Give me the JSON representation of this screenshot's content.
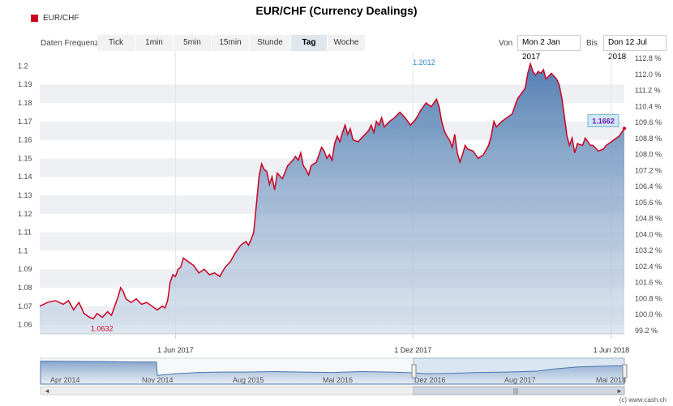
{
  "title": "EUR/CHF (Currency Dealings)",
  "legend": {
    "label": "EUR/CHF",
    "color": "#cc0022"
  },
  "controls": {
    "frequency_label": "Daten Frequenz",
    "buttons": [
      "Tick",
      "1min",
      "5min",
      "15min",
      "Stunde",
      "Tag",
      "Woche"
    ],
    "active": "Tag",
    "from_label": "Von",
    "from_value": "Mon 2 Jan 2017",
    "to_label": "Bis",
    "to_value": "Don 12 Jul 2018"
  },
  "footer": "(c) www.cash.ch",
  "chart_data": {
    "type": "area",
    "title": "EUR/CHF (Currency Dealings)",
    "series": [
      {
        "name": "EUR/CHF",
        "color": "#cc0022"
      }
    ],
    "x_ticks": [
      "1 Jun 2017",
      "1 Dez 2017",
      "1 Jun 2018"
    ],
    "y_left_ticks": [
      "1.06",
      "1.07",
      "1.08",
      "1.09",
      "1.1",
      "1.11",
      "1.12",
      "1.13",
      "1.14",
      "1.15",
      "1.16",
      "1.17",
      "1.18",
      "1.19",
      "1.2"
    ],
    "y_right_ticks": [
      "99.2 %",
      "100.0 %",
      "100.8 %",
      "101.6 %",
      "102.4 %",
      "103.2 %",
      "104.0 %",
      "104.8 %",
      "105.6 %",
      "106.4 %",
      "107.2 %",
      "108.0 %",
      "108.8 %",
      "109.6 %",
      "110.4 %",
      "111.2 %",
      "112.0 %",
      "112.8 %"
    ],
    "ylim": [
      1.055,
      1.205
    ],
    "annotations": {
      "max_label": "1.2012",
      "min_label": "1.0632",
      "last_label": "1.1662"
    },
    "points": [
      [
        0,
        1.07
      ],
      [
        6,
        1.072
      ],
      [
        12,
        1.073
      ],
      [
        18,
        1.071
      ],
      [
        22,
        1.073
      ],
      [
        26,
        1.068
      ],
      [
        30,
        1.072
      ],
      [
        34,
        1.066
      ],
      [
        38,
        1.064
      ],
      [
        41,
        1.0632
      ],
      [
        44,
        1.066
      ],
      [
        48,
        1.064
      ],
      [
        52,
        1.067
      ],
      [
        55,
        1.065
      ],
      [
        58,
        1.071
      ],
      [
        60,
        1.075
      ],
      [
        62,
        1.08
      ],
      [
        64,
        1.078
      ],
      [
        66,
        1.074
      ],
      [
        70,
        1.072
      ],
      [
        74,
        1.074
      ],
      [
        78,
        1.071
      ],
      [
        82,
        1.072
      ],
      [
        86,
        1.07
      ],
      [
        90,
        1.068
      ],
      [
        94,
        1.07
      ],
      [
        96,
        1.069
      ],
      [
        98,
        1.073
      ],
      [
        100,
        1.083
      ],
      [
        102,
        1.087
      ],
      [
        104,
        1.086
      ],
      [
        106,
        1.09
      ],
      [
        108,
        1.091
      ],
      [
        110,
        1.096
      ],
      [
        114,
        1.094
      ],
      [
        118,
        1.092
      ],
      [
        122,
        1.088
      ],
      [
        126,
        1.09
      ],
      [
        130,
        1.087
      ],
      [
        134,
        1.088
      ],
      [
        138,
        1.086
      ],
      [
        142,
        1.091
      ],
      [
        146,
        1.094
      ],
      [
        150,
        1.099
      ],
      [
        154,
        1.103
      ],
      [
        158,
        1.105
      ],
      [
        160,
        1.103
      ],
      [
        162,
        1.106
      ],
      [
        164,
        1.11
      ],
      [
        166,
        1.125
      ],
      [
        168,
        1.14
      ],
      [
        170,
        1.147
      ],
      [
        172,
        1.144
      ],
      [
        174,
        1.143
      ],
      [
        176,
        1.136
      ],
      [
        178,
        1.14
      ],
      [
        180,
        1.133
      ],
      [
        182,
        1.142
      ],
      [
        186,
        1.139
      ],
      [
        190,
        1.146
      ],
      [
        194,
        1.149
      ],
      [
        196,
        1.151
      ],
      [
        198,
        1.149
      ],
      [
        200,
        1.153
      ],
      [
        202,
        1.146
      ],
      [
        204,
        1.144
      ],
      [
        206,
        1.141
      ],
      [
        208,
        1.146
      ],
      [
        212,
        1.148
      ],
      [
        216,
        1.156
      ],
      [
        218,
        1.154
      ],
      [
        220,
        1.15
      ],
      [
        222,
        1.152
      ],
      [
        224,
        1.149
      ],
      [
        226,
        1.158
      ],
      [
        228,
        1.162
      ],
      [
        230,
        1.159
      ],
      [
        232,
        1.164
      ],
      [
        234,
        1.168
      ],
      [
        236,
        1.163
      ],
      [
        238,
        1.166
      ],
      [
        240,
        1.16
      ],
      [
        244,
        1.159
      ],
      [
        248,
        1.162
      ],
      [
        252,
        1.165
      ],
      [
        254,
        1.168
      ],
      [
        256,
        1.164
      ],
      [
        258,
        1.17
      ],
      [
        260,
        1.168
      ],
      [
        262,
        1.172
      ],
      [
        264,
        1.167
      ],
      [
        268,
        1.17
      ],
      [
        272,
        1.172
      ],
      [
        276,
        1.175
      ],
      [
        280,
        1.172
      ],
      [
        284,
        1.168
      ],
      [
        288,
        1.171
      ],
      [
        292,
        1.176
      ],
      [
        296,
        1.18
      ],
      [
        300,
        1.178
      ],
      [
        304,
        1.182
      ],
      [
        306,
        1.178
      ],
      [
        308,
        1.17
      ],
      [
        310,
        1.165
      ],
      [
        312,
        1.162
      ],
      [
        314,
        1.16
      ],
      [
        316,
        1.156
      ],
      [
        318,
        1.163
      ],
      [
        320,
        1.153
      ],
      [
        322,
        1.148
      ],
      [
        324,
        1.152
      ],
      [
        326,
        1.157
      ],
      [
        328,
        1.155
      ],
      [
        332,
        1.154
      ],
      [
        336,
        1.15
      ],
      [
        340,
        1.152
      ],
      [
        344,
        1.157
      ],
      [
        346,
        1.162
      ],
      [
        348,
        1.17
      ],
      [
        350,
        1.167
      ],
      [
        354,
        1.17
      ],
      [
        358,
        1.172
      ],
      [
        362,
        1.174
      ],
      [
        366,
        1.182
      ],
      [
        370,
        1.186
      ],
      [
        372,
        1.188
      ],
      [
        374,
        1.196
      ],
      [
        376,
        1.2012
      ],
      [
        378,
        1.197
      ],
      [
        380,
        1.195
      ],
      [
        382,
        1.197
      ],
      [
        384,
        1.196
      ],
      [
        386,
        1.198
      ],
      [
        388,
        1.193
      ],
      [
        392,
        1.196
      ],
      [
        396,
        1.193
      ],
      [
        398,
        1.19
      ],
      [
        400,
        1.183
      ],
      [
        402,
        1.173
      ],
      [
        404,
        1.162
      ],
      [
        406,
        1.157
      ],
      [
        408,
        1.161
      ],
      [
        410,
        1.153
      ],
      [
        412,
        1.158
      ],
      [
        416,
        1.157
      ],
      [
        418,
        1.161
      ],
      [
        422,
        1.157
      ],
      [
        424,
        1.157
      ],
      [
        428,
        1.154
      ],
      [
        432,
        1.155
      ],
      [
        434,
        1.157
      ],
      [
        436,
        1.158
      ],
      [
        440,
        1.16
      ],
      [
        444,
        1.162
      ],
      [
        448,
        1.1662
      ]
    ],
    "navigator": {
      "x_ticks": [
        "Apr 2014",
        "Nov 2014",
        "Aug 2015",
        "Mai 2016",
        "Dez 2016",
        "Aug 2017",
        "Mai 2018"
      ]
    }
  }
}
